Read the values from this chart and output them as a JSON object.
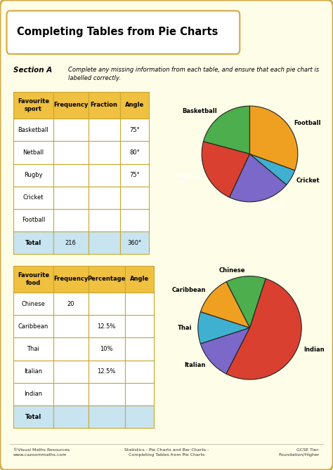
{
  "title": "Completing Tables from Pie Charts",
  "bg_color": "#fefde8",
  "border_color": "#d4a843",
  "section_a_label": "Section A",
  "section_a_text": "Complete any missing information from each table, and ensure that each pie chart is\nlabelled correctly.",
  "table1": {
    "header": [
      "Favourite\nsport",
      "Frequency",
      "Fraction",
      "Angle"
    ],
    "rows": [
      [
        "Basketball",
        "",
        "",
        "75°"
      ],
      [
        "Netball",
        "",
        "",
        "80°"
      ],
      [
        "Rugby",
        "",
        "",
        "75°"
      ],
      [
        "Cricket",
        "",
        "",
        ""
      ],
      [
        "Football",
        "",
        "",
        ""
      ]
    ],
    "total_row": [
      "Total",
      "216",
      "",
      "360°"
    ],
    "header_color": "#f0c040",
    "total_color": "#c8e4f0",
    "border_color": "#c8a830"
  },
  "pie1": {
    "labels": [
      "Basketball",
      "Netball",
      "Rugby",
      "Cricket",
      "Football"
    ],
    "sizes": [
      75,
      80,
      75,
      20,
      110
    ],
    "colors": [
      "#4cae4c",
      "#d94030",
      "#7b68c8",
      "#40b0d0",
      "#f0a020"
    ],
    "startangle": 90,
    "label_white": [
      "Netball",
      "Rugby"
    ]
  },
  "table2": {
    "header": [
      "Favourite\nfood",
      "Frequency",
      "Percentage",
      "Angle"
    ],
    "rows": [
      [
        "Chinese",
        "20",
        "",
        ""
      ],
      [
        "Caribbean",
        "",
        "12.5%",
        ""
      ],
      [
        "Thai",
        "",
        "10%",
        ""
      ],
      [
        "Italian",
        "",
        "12.5%",
        ""
      ],
      [
        "Indian",
        "",
        "",
        ""
      ]
    ],
    "total_row": [
      "Total",
      "",
      "",
      ""
    ],
    "header_color": "#f0c040",
    "total_color": "#c8e4f0",
    "border_color": "#c8a830"
  },
  "pie2": {
    "labels": [
      "Chinese",
      "Caribbean",
      "Thai",
      "Italian",
      "Indian"
    ],
    "sizes": [
      45,
      45,
      36,
      45,
      189
    ],
    "colors": [
      "#4cae4c",
      "#f0a020",
      "#40b0d0",
      "#7b68c8",
      "#d94030"
    ],
    "startangle": 72,
    "label_white": []
  },
  "footer_left": "©Visual Maths Resources\nwww.cazoommaths.com",
  "footer_center": "Statistics - Pie Charts and Bar Charts -\nCompleting Tables from Pie Charts",
  "footer_right": "GCSE Tier:\nFoundation/Higher"
}
